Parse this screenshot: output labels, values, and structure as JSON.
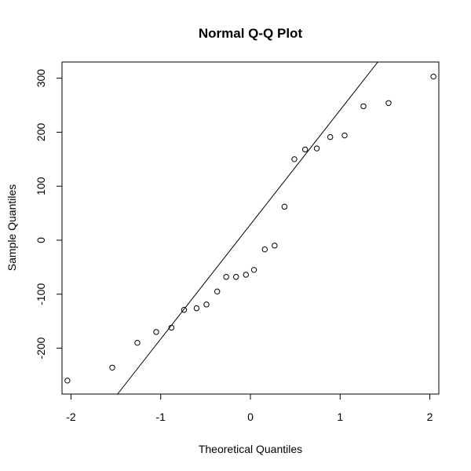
{
  "chart_data": {
    "type": "scatter",
    "title": "Normal Q-Q Plot",
    "xlabel": "Theoretical Quantiles",
    "ylabel": "Sample Quantiles",
    "xlim": [
      -2.1,
      2.1
    ],
    "ylim": [
      -285,
      330
    ],
    "x_ticks": [
      -2,
      -1,
      0,
      1,
      2
    ],
    "x_tick_labels": [
      "-2",
      "-1",
      "0",
      "1",
      "2"
    ],
    "y_ticks": [
      -200,
      -100,
      0,
      100,
      200,
      300
    ],
    "y_tick_labels": [
      "-200",
      "-100",
      "0",
      "100",
      "200",
      "300"
    ],
    "grid": false,
    "legend": "none",
    "colors": {
      "points": "#000000",
      "line": "#000000",
      "frame": "#000000",
      "background": "#ffffff"
    },
    "points": {
      "x": [
        -2.04,
        -1.54,
        -1.26,
        -1.05,
        -0.88,
        -0.74,
        -0.6,
        -0.49,
        -0.37,
        -0.27,
        -0.16,
        -0.05,
        0.04,
        0.16,
        0.27,
        0.38,
        0.49,
        0.61,
        0.74,
        0.89,
        1.05,
        1.26,
        1.54,
        2.04
      ],
      "y": [
        -260,
        -236,
        -190,
        -170,
        -162,
        -129,
        -126,
        -119,
        -95,
        -68,
        -68,
        -64,
        -55,
        -17,
        -10,
        62,
        150,
        168,
        170,
        191,
        194,
        248,
        254,
        303
      ]
    },
    "reference_line": {
      "intercept": 29,
      "slope": 212
    }
  }
}
